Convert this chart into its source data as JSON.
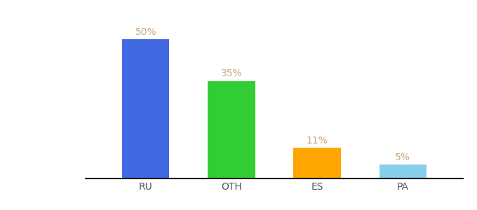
{
  "categories": [
    "RU",
    "OTH",
    "ES",
    "PA"
  ],
  "values": [
    50,
    35,
    11,
    5
  ],
  "labels": [
    "50%",
    "35%",
    "11%",
    "5%"
  ],
  "bar_colors": [
    "#4169E1",
    "#32CD32",
    "#FFA500",
    "#87CEEB"
  ],
  "background_color": "#ffffff",
  "label_color": "#c8a882",
  "xlabel_color": "#555555",
  "ylim": [
    0,
    58
  ],
  "bar_width": 0.55,
  "label_fontsize": 10,
  "tick_fontsize": 10
}
